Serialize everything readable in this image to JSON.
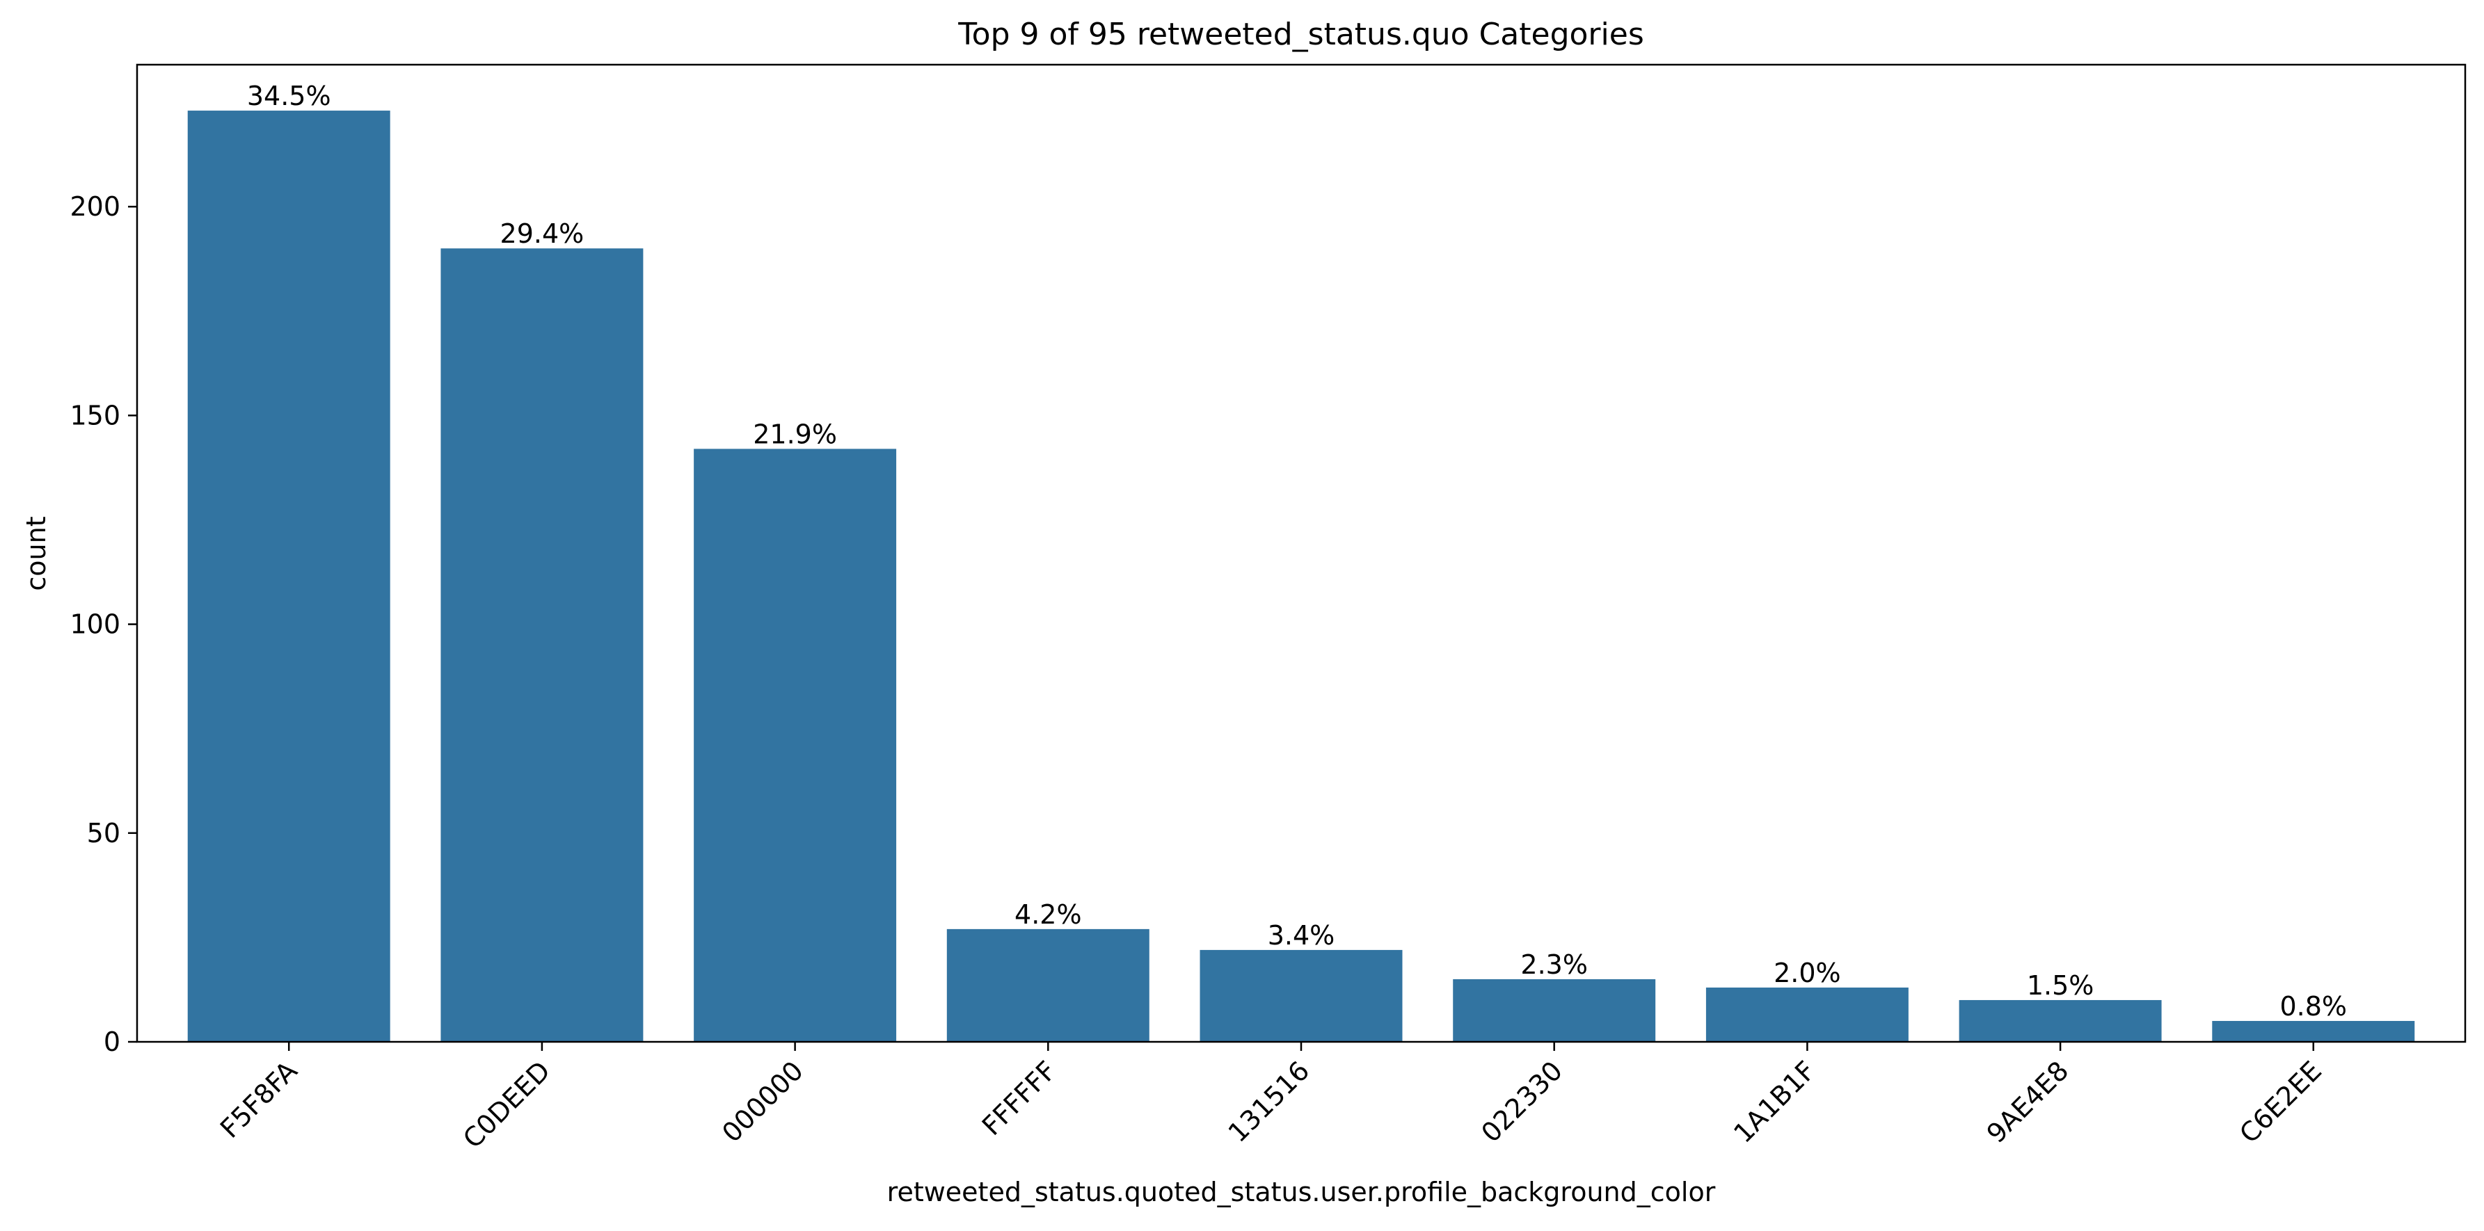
{
  "chart_data": {
    "type": "bar",
    "title": "Top 9 of 95 retweeted_status.quo Categories",
    "xlabel": "retweeted_status.quoted_status.user.profile_background_color",
    "ylabel": "count",
    "categories": [
      "F5F8FA",
      "C0DEED",
      "000000",
      "FFFFFF",
      "131516",
      "022330",
      "1A1B1F",
      "9AE4E8",
      "C6E2EE"
    ],
    "values": [
      223,
      190,
      142,
      27,
      22,
      15,
      13,
      10,
      5
    ],
    "data_labels": [
      "34.5%",
      "29.4%",
      "21.9%",
      "4.2%",
      "3.4%",
      "2.3%",
      "2.0%",
      "1.5%",
      "0.8%"
    ],
    "yticks": [
      0,
      50,
      100,
      150,
      200
    ],
    "ylim": [
      0,
      234
    ],
    "grid": false,
    "bar_color": "#3274a1",
    "xtick_rotation": -45
  }
}
